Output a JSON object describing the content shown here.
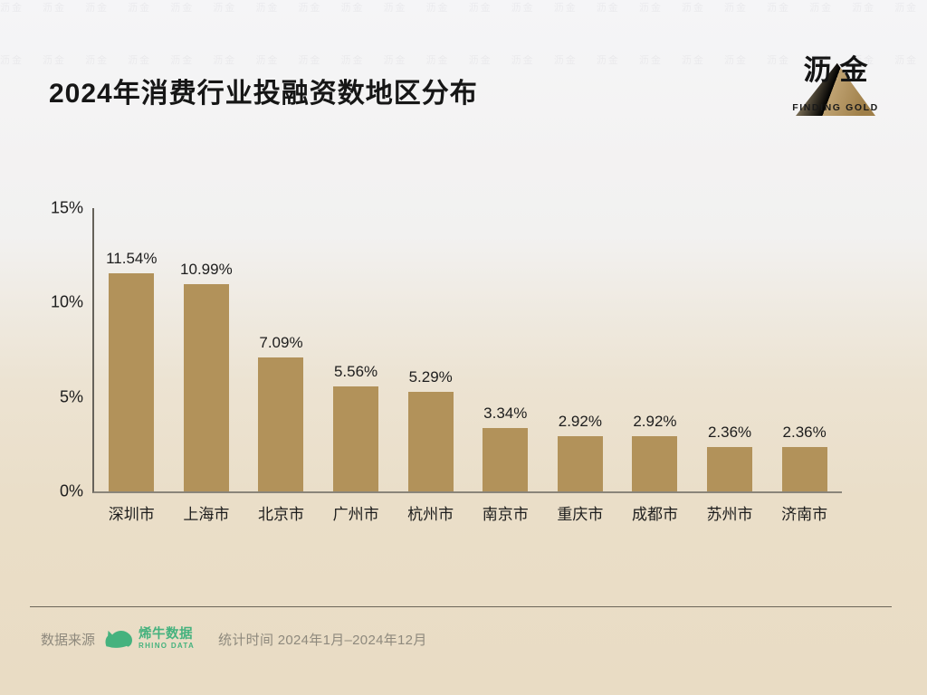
{
  "header": {
    "title": "2024年消费行业投融资数地区分布",
    "brand": {
      "name": "沥金",
      "tagline": "FINDING GOLD"
    }
  },
  "watermark": {
    "text": "沥金"
  },
  "chart_data": {
    "type": "bar",
    "title": "2024年消费行业投融资数地区分布",
    "categories": [
      "深圳市",
      "上海市",
      "北京市",
      "广州市",
      "杭州市",
      "南京市",
      "重庆市",
      "成都市",
      "苏州市",
      "济南市"
    ],
    "values": [
      11.54,
      10.99,
      7.09,
      5.56,
      5.29,
      3.34,
      2.92,
      2.92,
      2.36,
      2.36
    ],
    "value_labels": [
      "11.54%",
      "10.99%",
      "7.09%",
      "5.56%",
      "5.29%",
      "3.34%",
      "2.92%",
      "2.92%",
      "2.36%",
      "2.36%"
    ],
    "xlabel": "",
    "ylabel": "",
    "ylim": [
      0,
      15
    ],
    "y_ticks": [
      {
        "label": "15%",
        "value": 15
      },
      {
        "label": "10%",
        "value": 10
      },
      {
        "label": "5%",
        "value": 5
      },
      {
        "label": "0%",
        "value": 0
      }
    ],
    "grid": false,
    "legend": null,
    "bar_color": "#b2925a"
  },
  "footer": {
    "source_label": "数据来源",
    "source_name": "烯牛数据",
    "source_subname": "RHINO DATA",
    "stat_time": "统计时间 2024年1月–2024年12月"
  },
  "colors": {
    "background_top": "#f5f5f7",
    "background_bottom": "#e9dcc4",
    "bar": "#b2925a",
    "text": "#1c1c1c",
    "muted_text": "#8e897d",
    "rhino_green": "#45b27e",
    "gold_light": "#d4be93",
    "gold_dark": "#9f7f49",
    "axis": "#66625a"
  }
}
